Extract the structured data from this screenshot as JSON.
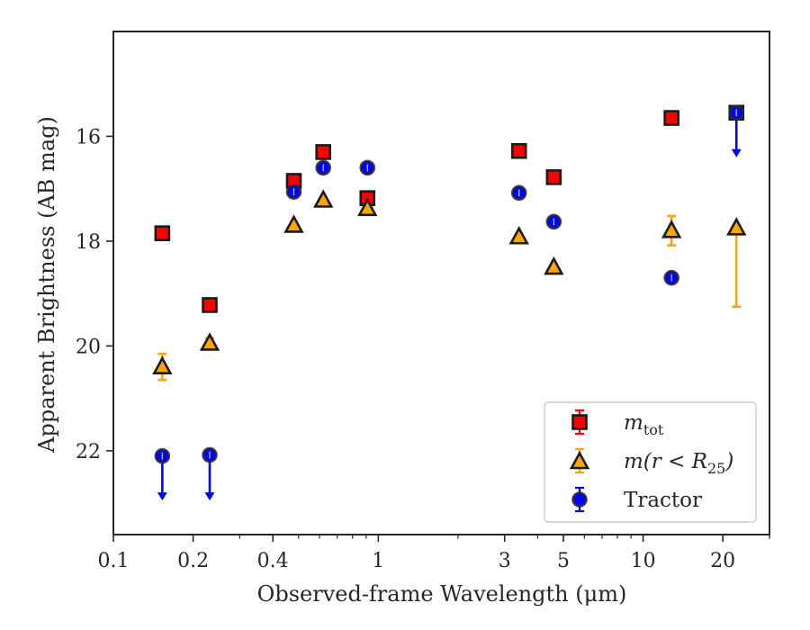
{
  "chart_data": {
    "type": "scatter",
    "xlabel": "Observed-frame Wavelength (μm)",
    "ylabel": "Apparent Brightness (AB mag)",
    "xscale": "log",
    "xlim": [
      0.1,
      30
    ],
    "ylim": [
      23.6,
      14.0
    ],
    "y_inverted": true,
    "x_ticks": [
      {
        "value": 0.1,
        "label": "0.1"
      },
      {
        "value": 0.2,
        "label": "0.2"
      },
      {
        "value": 0.4,
        "label": "0.4"
      },
      {
        "value": 1,
        "label": "1"
      },
      {
        "value": 3,
        "label": "3"
      },
      {
        "value": 5,
        "label": "5"
      },
      {
        "value": 10,
        "label": "10"
      },
      {
        "value": 20,
        "label": "20"
      }
    ],
    "y_ticks": [
      {
        "value": 16,
        "label": "16"
      },
      {
        "value": 18,
        "label": "18"
      },
      {
        "value": 20,
        "label": "20"
      },
      {
        "value": 22,
        "label": "22"
      }
    ],
    "grid": false,
    "legend": {
      "position": "lower right",
      "entries": [
        {
          "series": "m_tot",
          "label": "m",
          "subscript": "tot"
        },
        {
          "series": "m_r25",
          "label": "m(r < R",
          "subscript": "25",
          "suffix": ")"
        },
        {
          "series": "tractor",
          "label": "Tractor"
        }
      ]
    },
    "series": [
      {
        "id": "m_tot",
        "marker": "square",
        "color": "#ff0000",
        "points": [
          {
            "x": 0.153,
            "y": 17.85
          },
          {
            "x": 0.231,
            "y": 19.22
          },
          {
            "x": 0.48,
            "y": 16.85
          },
          {
            "x": 0.62,
            "y": 16.3
          },
          {
            "x": 0.91,
            "y": 17.18
          },
          {
            "x": 3.4,
            "y": 16.28
          },
          {
            "x": 4.6,
            "y": 16.78
          },
          {
            "x": 12.8,
            "y": 15.65
          },
          {
            "x": 22.5,
            "y": 15.55
          }
        ]
      },
      {
        "id": "m_r25",
        "marker": "triangle",
        "color": "#ffa500",
        "points": [
          {
            "x": 0.153,
            "y": 20.4,
            "err": 0.25
          },
          {
            "x": 0.231,
            "y": 19.95,
            "err": 0.1
          },
          {
            "x": 0.48,
            "y": 17.7
          },
          {
            "x": 0.62,
            "y": 17.22
          },
          {
            "x": 0.91,
            "y": 17.38
          },
          {
            "x": 3.4,
            "y": 17.92
          },
          {
            "x": 4.6,
            "y": 18.5
          },
          {
            "x": 12.8,
            "y": 17.8,
            "err": 0.28
          },
          {
            "x": 22.5,
            "y": 17.75,
            "err_up": 0.0,
            "err_down": 1.5
          }
        ]
      },
      {
        "id": "tractor",
        "marker": "circle",
        "color": "#0000ff",
        "points": [
          {
            "x": 0.153,
            "y": 22.1,
            "upper_limit": true,
            "arrow_to": 22.95
          },
          {
            "x": 0.231,
            "y": 22.08,
            "upper_limit": true,
            "arrow_to": 22.95
          },
          {
            "x": 0.48,
            "y": 17.06
          },
          {
            "x": 0.62,
            "y": 16.6
          },
          {
            "x": 0.91,
            "y": 16.6
          },
          {
            "x": 3.4,
            "y": 17.08
          },
          {
            "x": 4.6,
            "y": 17.63
          },
          {
            "x": 12.8,
            "y": 18.7
          },
          {
            "x": 22.5,
            "y": 15.55,
            "upper_limit": true,
            "arrow_to": 16.4
          }
        ]
      }
    ]
  }
}
